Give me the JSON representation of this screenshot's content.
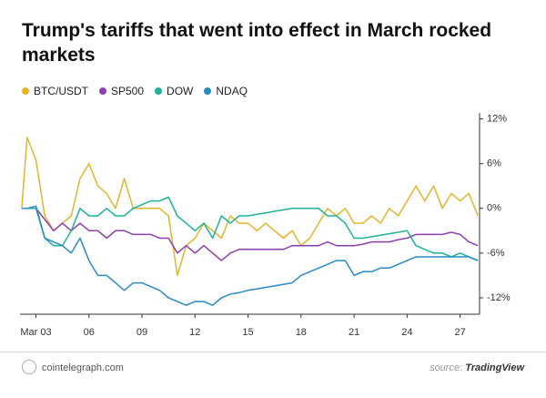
{
  "chart_data": {
    "type": "line",
    "title": "Trump's tariffs that went into effect in March rocked markets",
    "x": [
      2.2,
      2.5,
      3,
      3.5,
      4,
      4.5,
      5,
      5.5,
      6,
      6.5,
      7,
      7.5,
      8,
      8.5,
      9,
      9.5,
      10,
      10.5,
      11,
      11.5,
      12,
      12.5,
      13,
      13.5,
      14,
      14.5,
      15,
      15.5,
      16,
      16.5,
      17,
      17.5,
      18,
      18.5,
      19,
      19.5,
      20,
      20.5,
      21,
      21.5,
      22,
      22.5,
      23,
      23.5,
      24,
      24.5,
      25,
      25.5,
      26,
      26.5,
      27,
      27.5,
      28
    ],
    "series": [
      {
        "name": "BTC/USDT",
        "color": "#e3b52a",
        "values": [
          0,
          9.5,
          6.5,
          -1,
          -3,
          -2,
          -1,
          4,
          6,
          3,
          2,
          0,
          4,
          0,
          0,
          0,
          0,
          -1,
          -9,
          -5,
          -4,
          -2,
          -3,
          -4,
          -1,
          -2,
          -2,
          -3,
          -2,
          -3,
          -4,
          -3,
          -5,
          -4,
          -2,
          0,
          -1,
          0,
          -2,
          -2,
          -1,
          -2,
          0,
          -1,
          1,
          3,
          1,
          3,
          0,
          2,
          1,
          2,
          -1
        ]
      },
      {
        "name": "SP500",
        "color": "#8e3fae",
        "values": [
          0,
          0,
          0,
          -1.5,
          -3,
          -2,
          -3,
          -2,
          -3,
          -3,
          -4,
          -3,
          -3,
          -3.5,
          -3.5,
          -3.5,
          -4,
          -4,
          -6,
          -5,
          -6,
          -5,
          -6,
          -7,
          -6,
          -5.5,
          -5.5,
          -5.5,
          -5.5,
          -5.5,
          -5.5,
          -5,
          -5,
          -5,
          -5,
          -4.5,
          -5,
          -5,
          -5,
          -4.8,
          -4.5,
          -4.5,
          -4.5,
          -4.2,
          -4,
          -3.5,
          -3.5,
          -3.5,
          -3.5,
          -3.2,
          -3.5,
          -4.5,
          -5
        ]
      },
      {
        "name": "DOW",
        "color": "#1db39a",
        "values": [
          0,
          0,
          0,
          -4,
          -5,
          -5,
          -3,
          0,
          -1,
          -1,
          0,
          -1,
          -1,
          0,
          0.5,
          1,
          1,
          1.5,
          -1,
          -2,
          -3,
          -2,
          -4,
          -1,
          -2,
          -1,
          -1,
          -0.8,
          -0.6,
          -0.4,
          -0.2,
          0,
          0,
          0,
          0,
          -1,
          -1,
          -2,
          -4,
          -4,
          -3.8,
          -3.6,
          -3.4,
          -3.2,
          -3,
          -5,
          -5.5,
          -6,
          -6,
          -6.5,
          -6,
          -6.5,
          -7
        ]
      },
      {
        "name": "NDAQ",
        "color": "#2a8bc4",
        "values": [
          0,
          0,
          0.3,
          -4,
          -4.5,
          -5,
          -6,
          -4,
          -7,
          -9,
          -9,
          -10,
          -11,
          -10,
          -10,
          -10.5,
          -11,
          -12,
          -12.5,
          -13,
          -12.5,
          -12.5,
          -13,
          -12,
          -11.5,
          -11.3,
          -11,
          -10.8,
          -10.6,
          -10.4,
          -10.2,
          -10,
          -9,
          -8.5,
          -8,
          -7.5,
          -7,
          -7,
          -9,
          -8.5,
          -8.5,
          -8,
          -8,
          -7.5,
          -7,
          -6.5,
          -6.5,
          -6.5,
          -6.5,
          -6.5,
          -6.5,
          -6.5,
          -7
        ]
      }
    ],
    "xlim": [
      2.1,
      28.1
    ],
    "xticks": [
      {
        "value": 3,
        "label": "Mar 03"
      },
      {
        "value": 6,
        "label": "06"
      },
      {
        "value": 9,
        "label": "09"
      },
      {
        "value": 12,
        "label": "12"
      },
      {
        "value": 15,
        "label": "15"
      },
      {
        "value": 18,
        "label": "18"
      },
      {
        "value": 21,
        "label": "21"
      },
      {
        "value": 24,
        "label": "24"
      },
      {
        "value": 27,
        "label": "27"
      }
    ],
    "ylim": [
      -14.2,
      12.8
    ],
    "yticks": [
      {
        "value": 12,
        "label": "12%"
      },
      {
        "value": 6,
        "label": "6%"
      },
      {
        "value": 0,
        "label": "0%"
      },
      {
        "value": -6,
        "label": "-6%"
      },
      {
        "value": -12,
        "label": "-12%"
      }
    ],
    "grid": false,
    "legend": "top-left"
  },
  "footer": {
    "site": "cointelegraph.com",
    "source_label": "source:",
    "source": "TradingView"
  }
}
